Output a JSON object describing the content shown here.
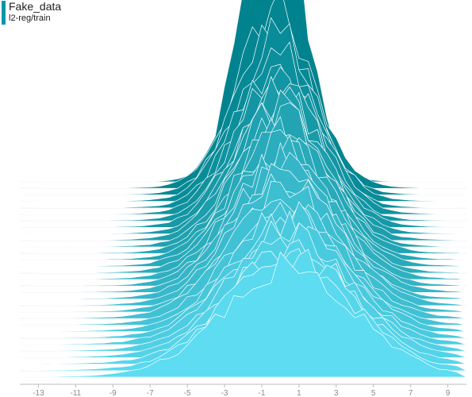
{
  "header": {
    "title": "Fake_data",
    "subtitle": "l2-reg/train",
    "accent_color": "#0097a7"
  },
  "chart_data": {
    "type": "area",
    "title": "Fake_data",
    "subtitle": "l2-reg/train",
    "xlabel": "",
    "ylabel": "",
    "xlim": [
      -14,
      10
    ],
    "x_ticks": [
      -13,
      -11,
      -9,
      -7,
      -5,
      -3,
      -1,
      1,
      3,
      5,
      7,
      9
    ],
    "grid": false,
    "legend": "none",
    "series_count": 31,
    "color_back": "#00838f",
    "color_front": "#5ddcf2",
    "stroke": "#ffffff",
    "series": [
      {
        "mean": -0.4,
        "std": 1.6,
        "peak": 0.95
      },
      {
        "mean": -0.3,
        "std": 2.0,
        "peak": 0.53
      },
      {
        "mean": -0.3,
        "std": 2.0,
        "peak": 0.5
      },
      {
        "mean": -0.2,
        "std": 2.1,
        "peak": 0.48
      },
      {
        "mean": -0.2,
        "std": 2.1,
        "peak": 0.46
      },
      {
        "mean": -0.1,
        "std": 2.2,
        "peak": 0.44
      },
      {
        "mean": -0.1,
        "std": 2.2,
        "peak": 0.43
      },
      {
        "mean": 0.0,
        "std": 2.3,
        "peak": 0.42
      },
      {
        "mean": 0.0,
        "std": 2.3,
        "peak": 0.41
      },
      {
        "mean": 0.0,
        "std": 2.4,
        "peak": 0.4
      },
      {
        "mean": 0.0,
        "std": 2.4,
        "peak": 0.4
      },
      {
        "mean": 0.1,
        "std": 2.5,
        "peak": 0.39
      },
      {
        "mean": 0.1,
        "std": 2.5,
        "peak": 0.39
      },
      {
        "mean": 0.1,
        "std": 2.6,
        "peak": 0.38
      },
      {
        "mean": 0.1,
        "std": 2.6,
        "peak": 0.38
      },
      {
        "mean": 0.2,
        "std": 2.7,
        "peak": 0.37
      },
      {
        "mean": 0.2,
        "std": 2.7,
        "peak": 0.37
      },
      {
        "mean": 0.2,
        "std": 2.8,
        "peak": 0.36
      },
      {
        "mean": 0.2,
        "std": 2.8,
        "peak": 0.36
      },
      {
        "mean": 0.3,
        "std": 2.9,
        "peak": 0.35
      },
      {
        "mean": 0.3,
        "std": 2.9,
        "peak": 0.35
      },
      {
        "mean": 0.3,
        "std": 3.0,
        "peak": 0.34
      },
      {
        "mean": 0.3,
        "std": 3.0,
        "peak": 0.34
      },
      {
        "mean": 0.4,
        "std": 3.1,
        "peak": 0.34
      },
      {
        "mean": 0.4,
        "std": 3.1,
        "peak": 0.33
      },
      {
        "mean": 0.4,
        "std": 3.2,
        "peak": 0.33
      },
      {
        "mean": 0.4,
        "std": 3.2,
        "peak": 0.33
      },
      {
        "mean": 0.5,
        "std": 3.3,
        "peak": 0.32
      },
      {
        "mean": 0.5,
        "std": 3.3,
        "peak": 0.32
      },
      {
        "mean": 0.5,
        "std": 3.4,
        "peak": 0.32
      },
      {
        "mean": 0.5,
        "std": 3.5,
        "peak": 0.32
      }
    ]
  }
}
